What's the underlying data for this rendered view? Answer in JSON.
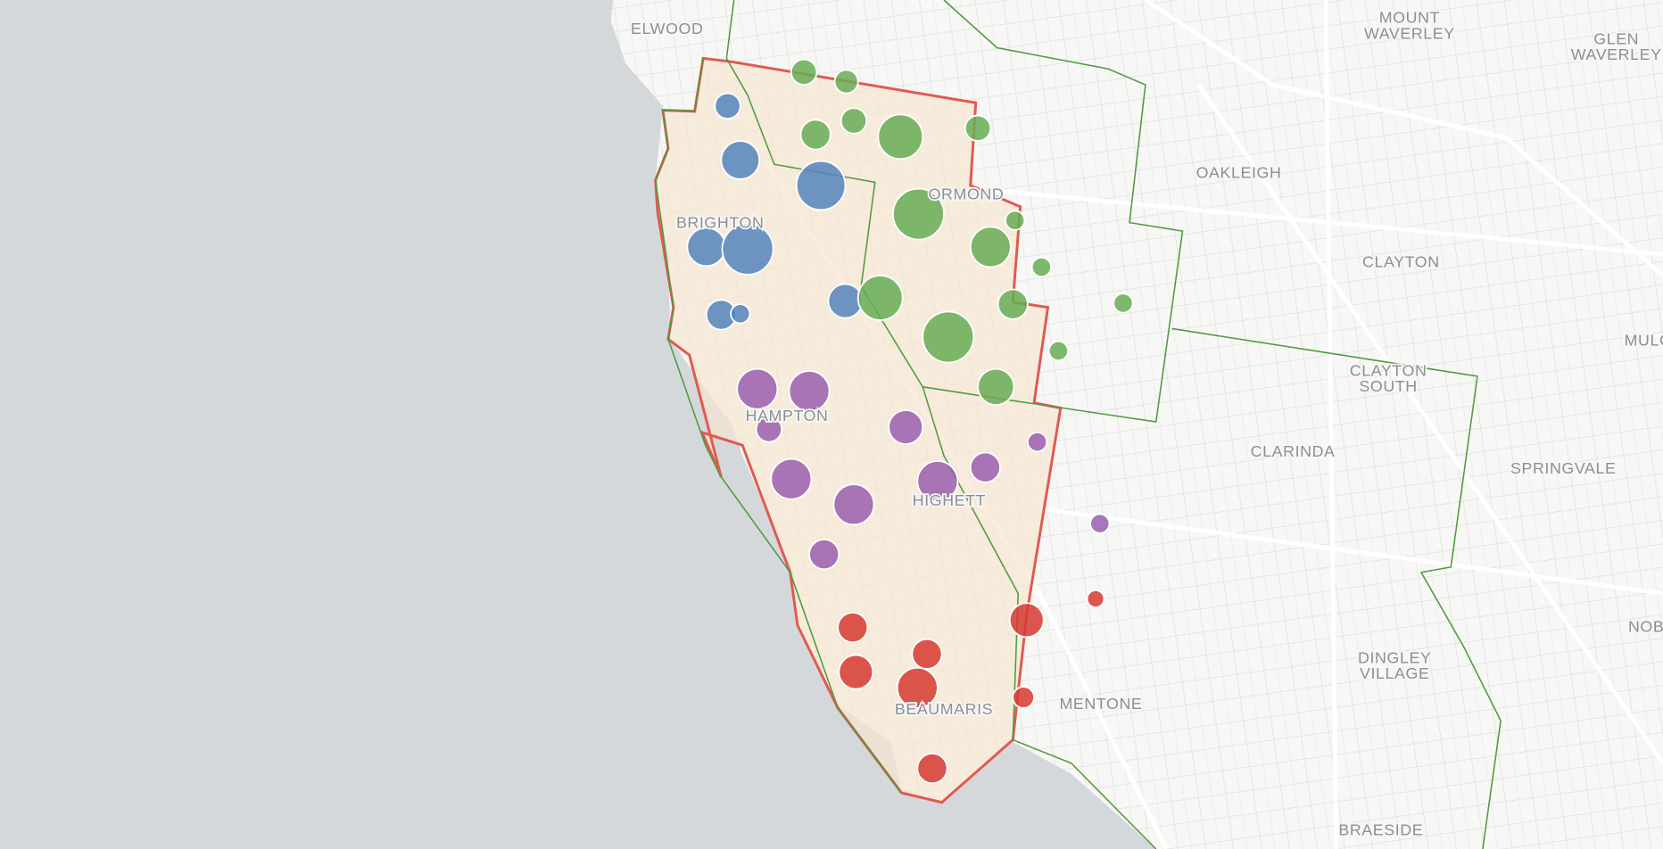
{
  "map": {
    "labels": [
      {
        "lines": [
          "ELWOOD"
        ]
      },
      {
        "lines": [
          "MOUNT",
          "WAVERLEY"
        ]
      },
      {
        "lines": [
          "GLEN",
          "WAVERLEY"
        ]
      },
      {
        "lines": [
          "OAKLEIGH"
        ]
      },
      {
        "lines": [
          "ORMOND"
        ]
      },
      {
        "lines": [
          "BRIGHTON"
        ]
      },
      {
        "lines": [
          "CLAYTON"
        ]
      },
      {
        "lines": [
          "MULGRAVE"
        ]
      },
      {
        "lines": [
          "CLAYTON",
          "SOUTH"
        ]
      },
      {
        "lines": [
          "CLARINDA"
        ]
      },
      {
        "lines": [
          "SPRINGVALE"
        ]
      },
      {
        "lines": [
          "HAMPTON"
        ]
      },
      {
        "lines": [
          "HIGHETT"
        ]
      },
      {
        "lines": [
          "MENTONE"
        ]
      },
      {
        "lines": [
          "BEAUMARIS"
        ]
      },
      {
        "lines": [
          "DINGLEY",
          "VILLAGE"
        ]
      },
      {
        "lines": [
          "NOBLE PARK"
        ]
      },
      {
        "lines": [
          "BRAESIDE"
        ]
      }
    ]
  }
}
